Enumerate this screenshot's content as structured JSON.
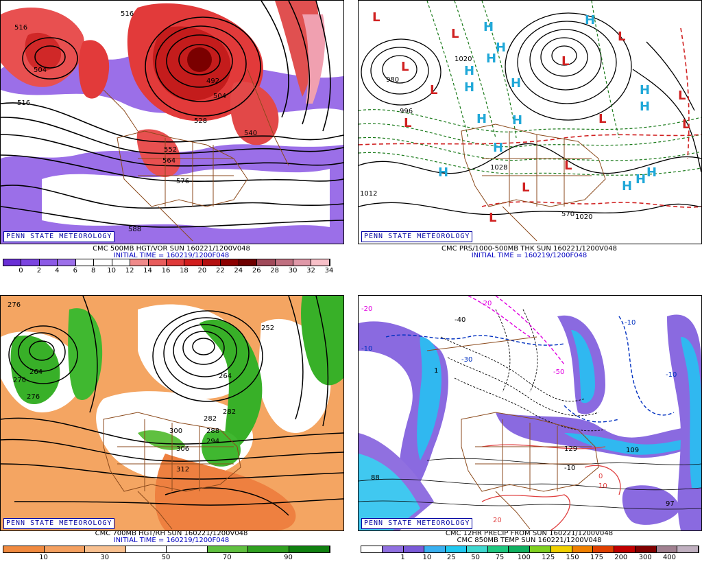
{
  "panels": {
    "tl": {
      "badge": "PENN STATE METEOROLOGY",
      "title": "CMC 500MB HGT/VOR SUN 160221/1200V048",
      "initial": "INITIAL TIME = 160219/1200F048",
      "contour_labels": [
        "516",
        "516",
        "504",
        "492",
        "504",
        "516",
        "528",
        "540",
        "552",
        "564",
        "576",
        "588"
      ],
      "scale_colors": [
        "#6a2fd6",
        "#7b44e0",
        "#8c5ae6",
        "#9d70ea",
        "#ffffff",
        "#ffffff",
        "#ffffff",
        "#f08a8a",
        "#e85c5c",
        "#e03a3a",
        "#d21e1e",
        "#b41010",
        "#8c0000",
        "#6e0000",
        "#a04a5a",
        "#c07080",
        "#e098a8",
        "#f8c0c8"
      ],
      "scale_ticks": [
        "0",
        "2",
        "4",
        "6",
        "8",
        "10",
        "12",
        "14",
        "16",
        "18",
        "20",
        "22",
        "24",
        "26",
        "28",
        "30",
        "32",
        "34"
      ]
    },
    "tr": {
      "badge": "PENN STATE METEOROLOGY",
      "title": "CMC PRS/1000-500MB THK SUN 160221/1200V048",
      "initial": "INITIAL TIME = 160219/1200F048",
      "contour_labels": [
        "980",
        "996",
        "1020",
        "1028",
        "1020",
        "1012",
        "570"
      ],
      "high_marker": "H",
      "low_marker": "L"
    },
    "bl": {
      "badge": "PENN STATE METEOROLOGY",
      "title": "CMC 700MB HGT/RH SUN 160221/1200V048",
      "initial": "INITIAL TIME = 160219/1200F048",
      "contour_labels": [
        "276",
        "264",
        "270",
        "276",
        "252",
        "264",
        "282",
        "288",
        "294",
        "300",
        "306",
        "312",
        "282"
      ],
      "scale_colors": [
        "#f08a40",
        "#f4a060",
        "#f8c090",
        "#ffffff",
        "#ffffff",
        "#60c040",
        "#30a020",
        "#108010"
      ],
      "scale_ticks": [
        "10",
        "30",
        "50",
        "70",
        "90"
      ]
    },
    "br": {
      "badge": "PENN STATE METEOROLOGY",
      "title1": "CMC 12HR PRECIP FROM SUN 160221/1200V048",
      "title2": "CMC 850MB TEMP SUN 160221/1200V048",
      "contour_labels": [
        "-20",
        "-10",
        "-30",
        "-40",
        "-50",
        "-10",
        "-10",
        "-20",
        "-10",
        "0",
        "10",
        "20",
        "88",
        "109",
        "97",
        "129",
        "1"
      ],
      "scale_colors": [
        "#ffffff",
        "#9070e0",
        "#7a5ad8",
        "#3ab0f0",
        "#20c8f0",
        "#40d8d0",
        "#20c880",
        "#10b060",
        "#80d020",
        "#f0d000",
        "#f08000",
        "#e04000",
        "#c00000",
        "#800000",
        "#a08090",
        "#c0b0c0"
      ],
      "scale_ticks": [
        "1",
        "10",
        "25",
        "50",
        "75",
        "100",
        "125",
        "150",
        "175",
        "200",
        "300",
        "400"
      ]
    }
  }
}
